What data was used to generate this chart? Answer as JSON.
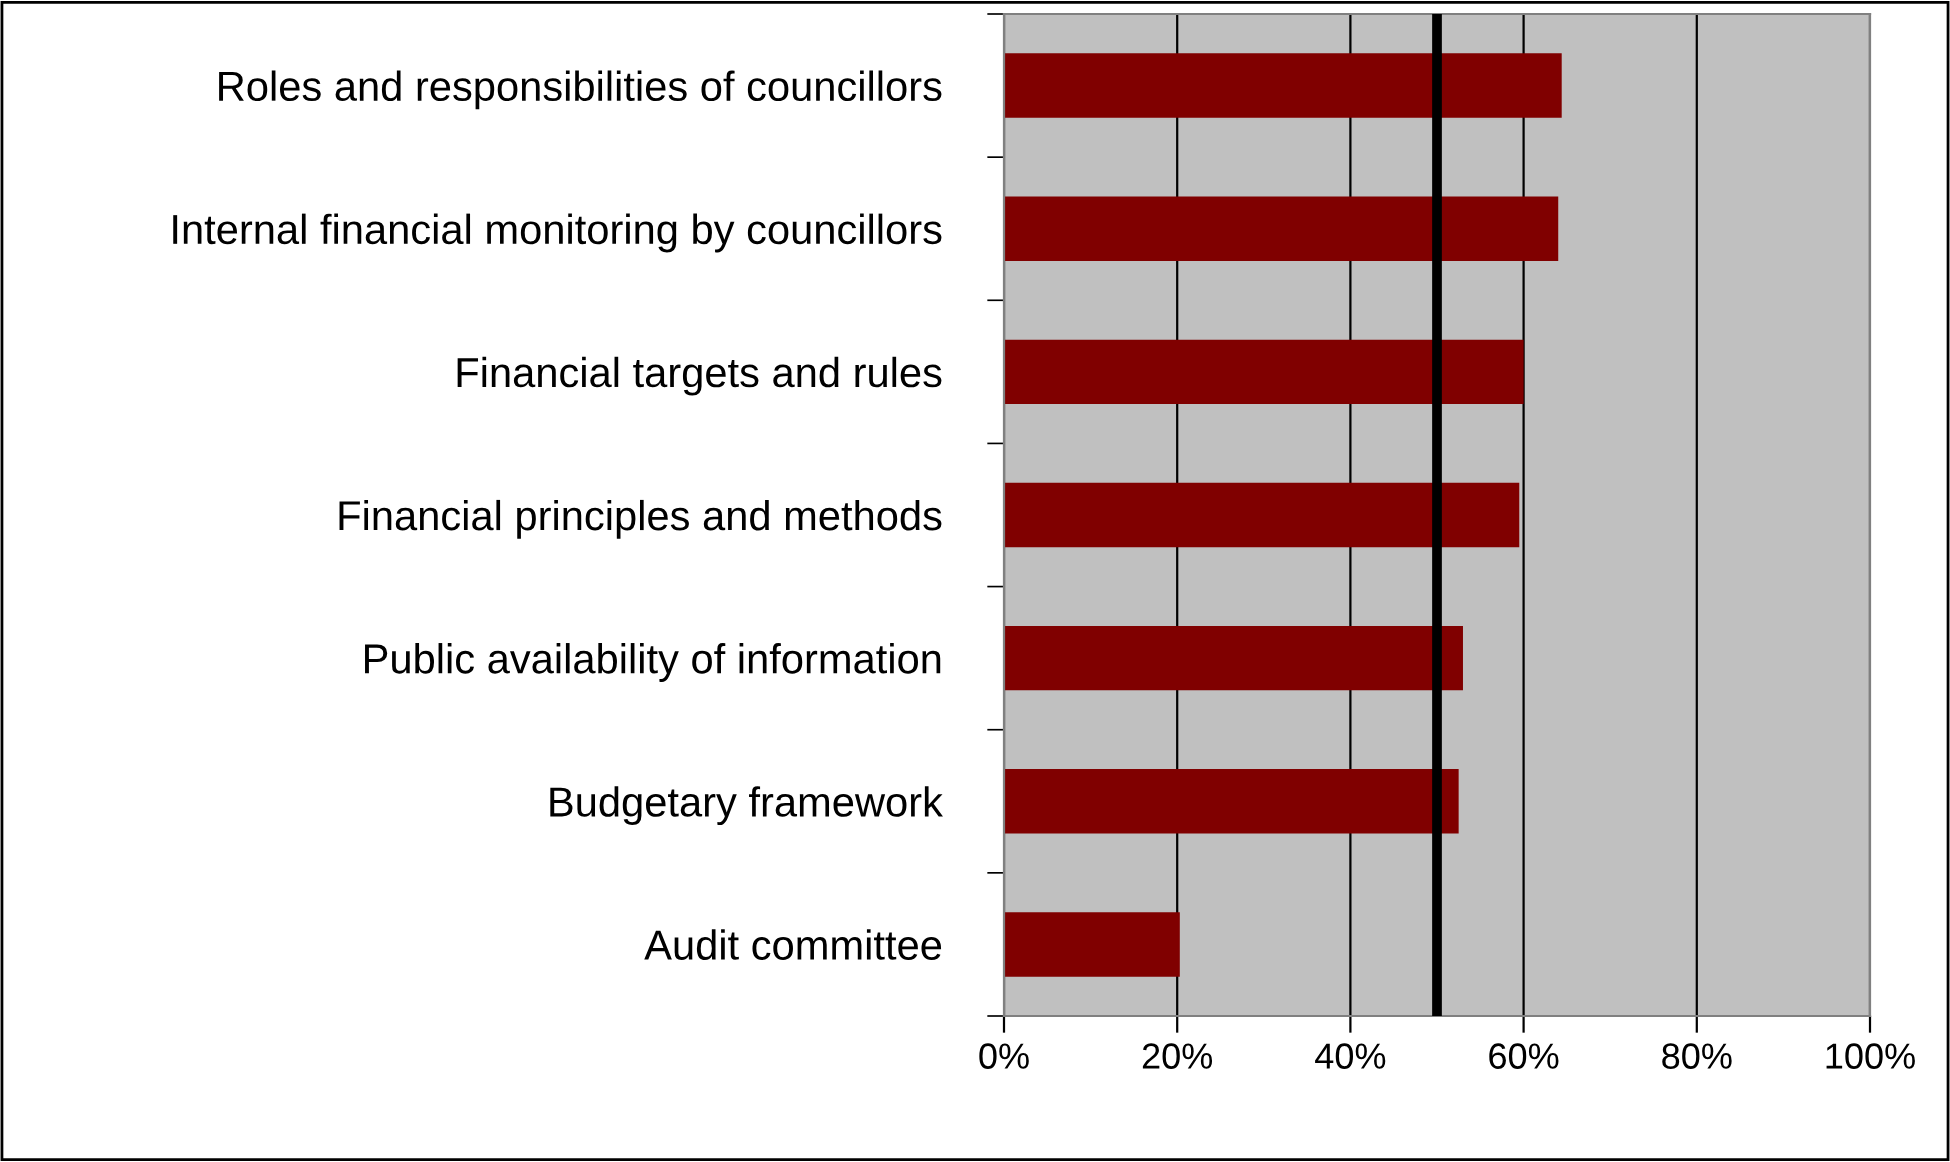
{
  "chart_data": {
    "type": "bar",
    "orientation": "horizontal",
    "categories": [
      "Roles and responsibilities of councillors",
      "Internal financial monitoring by councillors",
      "Financial targets and rules",
      "Financial principles and methods",
      "Public availability of information",
      "Budgetary framework",
      "Audit committee"
    ],
    "values": [
      64.4,
      64,
      60,
      59.5,
      53,
      52.5,
      20.3
    ],
    "color": "#800000",
    "xlim": [
      0,
      100
    ],
    "xticks": [
      {
        "value": 0,
        "label": "0%"
      },
      {
        "value": 20,
        "label": "20%"
      },
      {
        "value": 40,
        "label": "40%"
      },
      {
        "value": 60,
        "label": "60%"
      },
      {
        "value": 80,
        "label": "80%"
      },
      {
        "value": 100,
        "label": "100%"
      }
    ],
    "ref_lines": [
      {
        "axis": "x",
        "value": 50,
        "color": "#000000"
      }
    ],
    "grid": "x"
  }
}
